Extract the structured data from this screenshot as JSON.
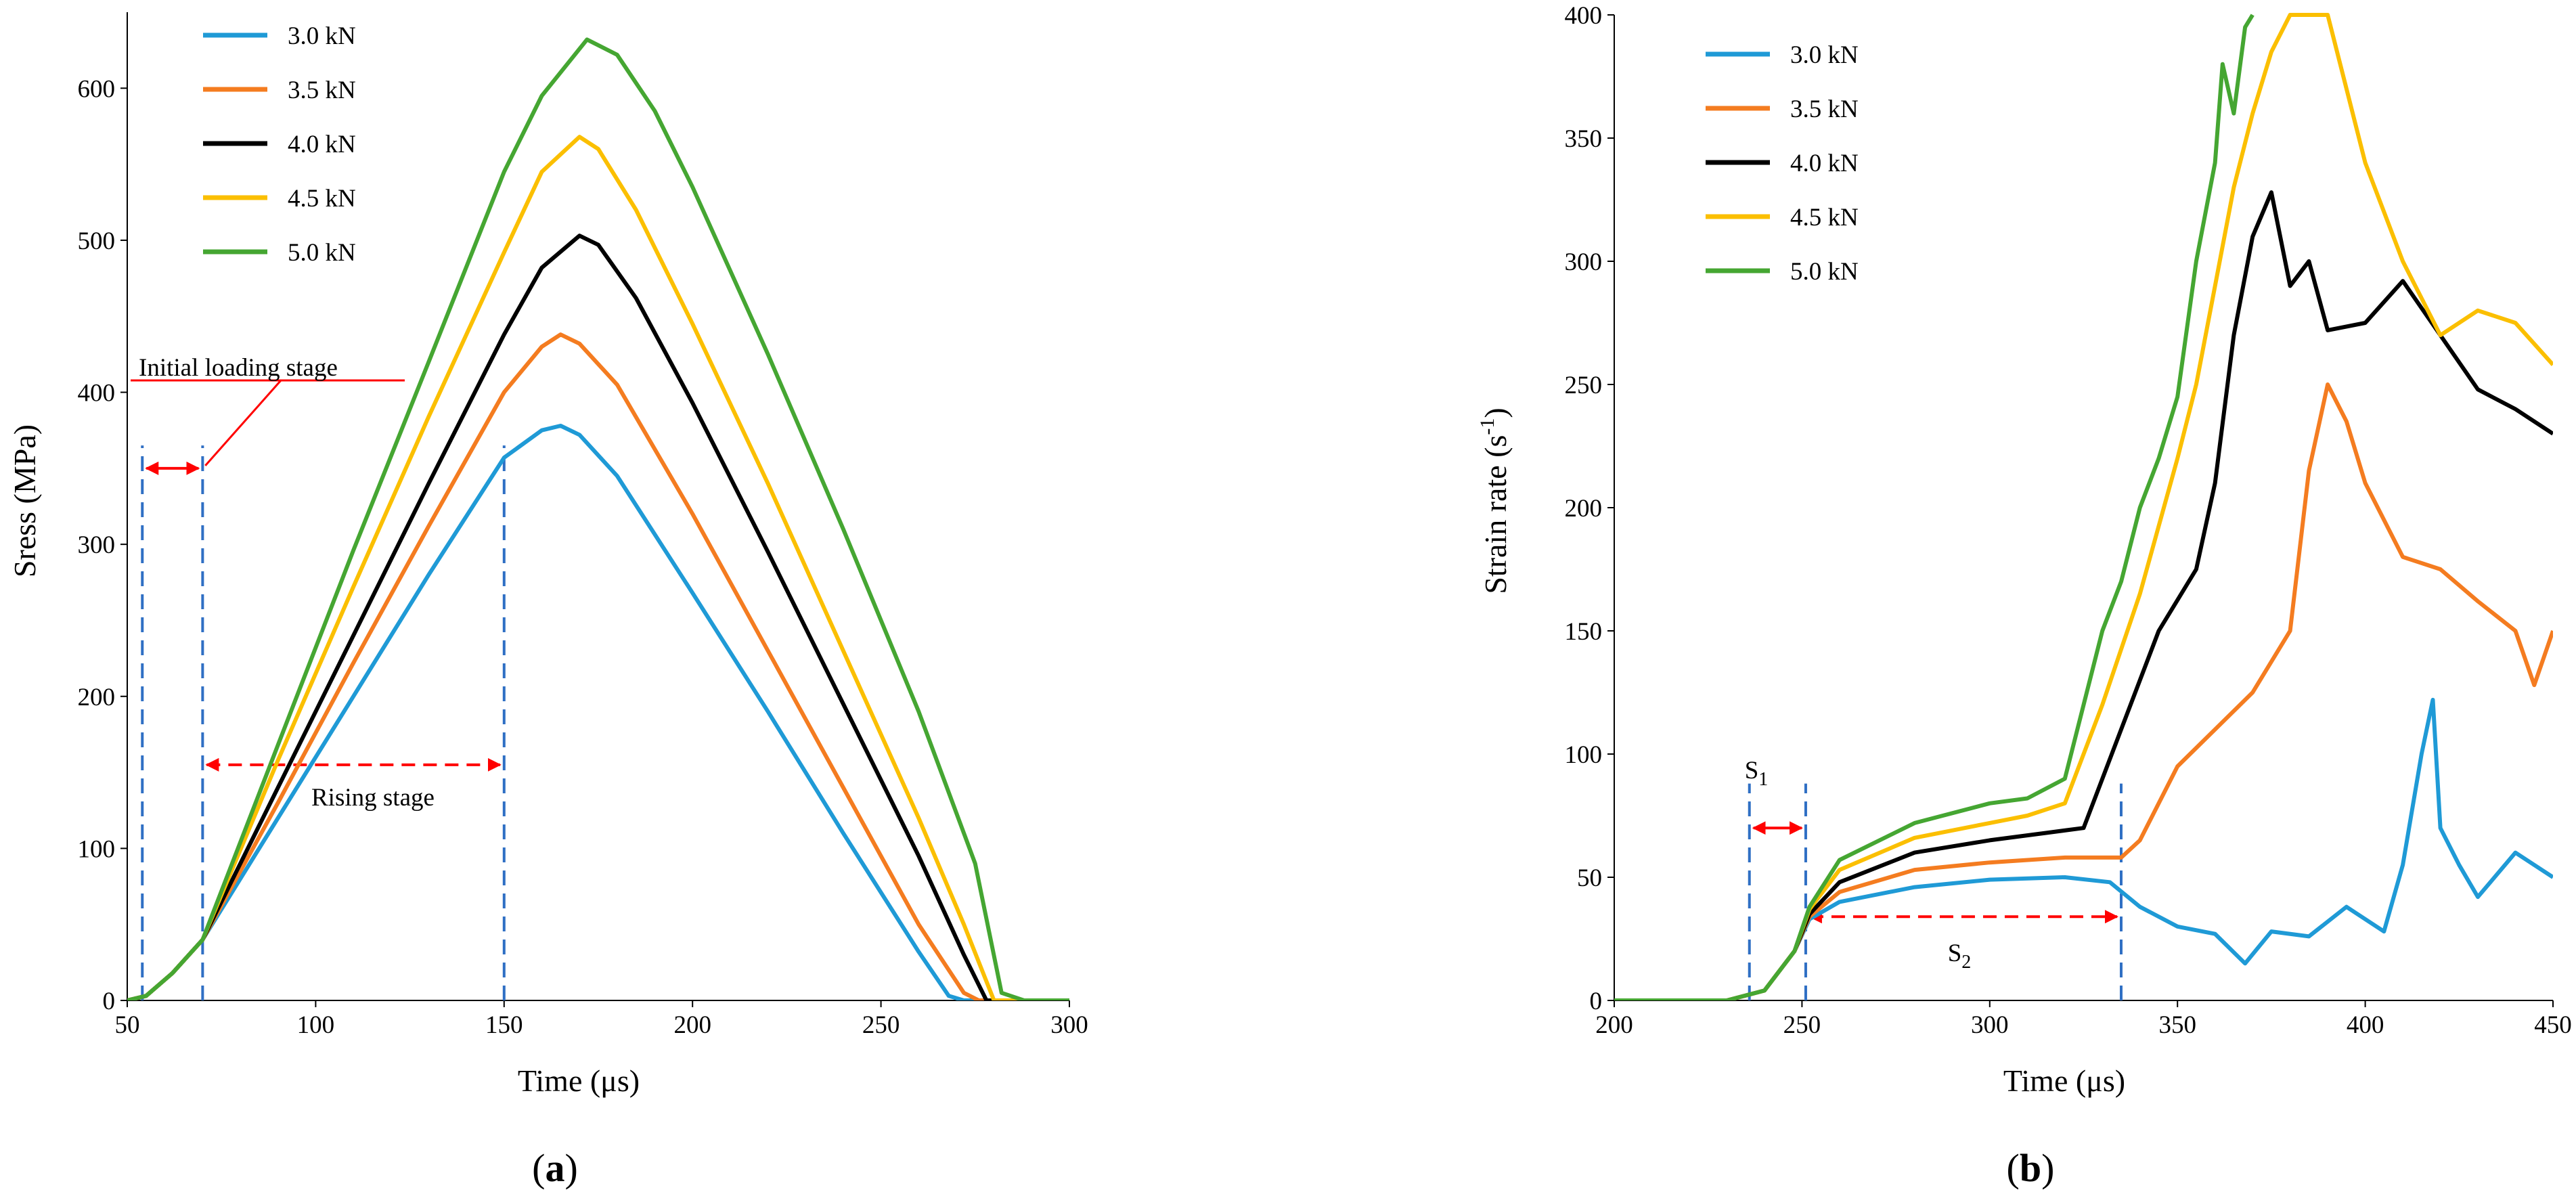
{
  "chart_data": [
    {
      "type": "line",
      "panel_label": "a",
      "xlabel": "Time (μs)",
      "ylabel": "Sress (MPa)",
      "xlim": [
        50,
        300
      ],
      "ylim": [
        0,
        650
      ],
      "xticks": [
        50,
        100,
        150,
        200,
        250,
        300
      ],
      "yticks": [
        0,
        100,
        200,
        300,
        400,
        500,
        600
      ],
      "legend_position": "top-left",
      "series": [
        {
          "name": "3.0 kN",
          "color": "#1f9ad6",
          "x": [
            50,
            55,
            62,
            70,
            90,
            110,
            130,
            150,
            160,
            165,
            170,
            180,
            200,
            220,
            240,
            260,
            268,
            272,
            280,
            300
          ],
          "y": [
            0,
            3,
            18,
            40,
            120,
            200,
            280,
            357,
            375,
            378,
            372,
            345,
            268,
            190,
            110,
            32,
            3,
            0,
            0,
            0
          ]
        },
        {
          "name": "3.5 kN",
          "color": "#f47c20",
          "x": [
            50,
            55,
            62,
            70,
            90,
            110,
            130,
            150,
            160,
            165,
            170,
            180,
            200,
            220,
            240,
            260,
            272,
            276,
            285,
            300
          ],
          "y": [
            0,
            3,
            18,
            40,
            130,
            222,
            312,
            400,
            430,
            438,
            432,
            405,
            320,
            230,
            140,
            50,
            5,
            0,
            0,
            0
          ]
        },
        {
          "name": "4.0 kN",
          "color": "#000000",
          "x": [
            50,
            55,
            62,
            70,
            90,
            110,
            130,
            150,
            160,
            170,
            175,
            185,
            200,
            220,
            240,
            260,
            272,
            278,
            285,
            300
          ],
          "y": [
            0,
            3,
            18,
            40,
            140,
            240,
            340,
            438,
            482,
            503,
            497,
            462,
            393,
            295,
            195,
            95,
            30,
            0,
            0,
            0
          ]
        },
        {
          "name": "4.5 kN",
          "color": "#fbbf00",
          "x": [
            50,
            55,
            62,
            70,
            90,
            110,
            130,
            150,
            160,
            170,
            175,
            185,
            200,
            220,
            240,
            260,
            272,
            280,
            285,
            300
          ],
          "y": [
            0,
            3,
            18,
            40,
            158,
            272,
            384,
            492,
            545,
            568,
            560,
            520,
            445,
            340,
            230,
            120,
            50,
            0,
            0,
            0
          ]
        },
        {
          "name": "5.0 kN",
          "color": "#45a632",
          "x": [
            50,
            55,
            62,
            70,
            90,
            110,
            130,
            150,
            160,
            172,
            180,
            190,
            200,
            220,
            240,
            260,
            275,
            282,
            288,
            300
          ],
          "y": [
            0,
            3,
            18,
            40,
            168,
            296,
            420,
            545,
            595,
            632,
            622,
            585,
            535,
            425,
            310,
            190,
            90,
            5,
            0,
            0
          ]
        }
      ],
      "annotations": [
        {
          "text": "Initial loading stage",
          "from": 54,
          "to": 70,
          "arrow_y": 350
        },
        {
          "text": "Rising stage",
          "from": 70,
          "to": 150,
          "arrow_y": 155
        },
        {
          "type": "dashed-vline",
          "x": 54
        },
        {
          "type": "dashed-vline",
          "x": 70
        },
        {
          "type": "dashed-vline",
          "x": 150
        }
      ]
    },
    {
      "type": "line",
      "panel_label": "b",
      "xlabel": "Time (μs)",
      "ylabel_main": "Strain rate (s",
      "ylabel_sup": "-1",
      "ylabel_end": ")",
      "xlim": [
        200,
        450
      ],
      "ylim": [
        0,
        400
      ],
      "xticks": [
        200,
        250,
        300,
        350,
        400,
        450
      ],
      "yticks": [
        0,
        50,
        100,
        150,
        200,
        250,
        300,
        350,
        400
      ],
      "legend_position": "top-left",
      "series": [
        {
          "name": "3.0 kN",
          "color": "#1f9ad6",
          "x": [
            200,
            230,
            240,
            248,
            252,
            260,
            280,
            300,
            320,
            332,
            340,
            350,
            360,
            368,
            375,
            385,
            395,
            405,
            410,
            415,
            418,
            420,
            425,
            430,
            440,
            450
          ],
          "y": [
            0,
            0,
            4,
            20,
            33,
            40,
            46,
            49,
            50,
            48,
            38,
            30,
            27,
            15,
            28,
            26,
            38,
            28,
            55,
            100,
            122,
            70,
            55,
            42,
            60,
            50
          ]
        },
        {
          "name": "3.5 kN",
          "color": "#f47c20",
          "x": [
            200,
            230,
            240,
            248,
            252,
            260,
            280,
            300,
            320,
            335,
            340,
            350,
            360,
            370,
            380,
            385,
            390,
            395,
            400,
            410,
            420,
            430,
            440,
            445,
            450
          ],
          "y": [
            0,
            0,
            4,
            20,
            34,
            44,
            53,
            56,
            58,
            58,
            65,
            95,
            110,
            125,
            150,
            215,
            250,
            235,
            210,
            180,
            175,
            162,
            150,
            128,
            150
          ]
        },
        {
          "name": "4.0 kN",
          "color": "#000000",
          "x": [
            200,
            230,
            240,
            248,
            252,
            260,
            280,
            300,
            315,
            325,
            335,
            345,
            355,
            360,
            365,
            370,
            375,
            380,
            385,
            390,
            400,
            410,
            420,
            430,
            440,
            450
          ],
          "y": [
            0,
            0,
            4,
            20,
            35,
            48,
            60,
            65,
            68,
            70,
            110,
            150,
            175,
            210,
            270,
            310,
            328,
            290,
            300,
            272,
            275,
            292,
            270,
            248,
            240,
            230
          ]
        },
        {
          "name": "4.5 kN",
          "color": "#fbbf00",
          "x": [
            200,
            230,
            240,
            248,
            252,
            260,
            280,
            300,
            310,
            320,
            330,
            340,
            350,
            355,
            360,
            365,
            370,
            375,
            380,
            390,
            395,
            400,
            410,
            420,
            430,
            440,
            450
          ],
          "y": [
            0,
            0,
            4,
            20,
            37,
            53,
            66,
            72,
            75,
            80,
            120,
            165,
            220,
            250,
            290,
            330,
            360,
            385,
            400,
            400,
            370,
            340,
            300,
            270,
            280,
            275,
            258
          ]
        },
        {
          "name": "5.0 kN",
          "color": "#45a632",
          "x": [
            200,
            230,
            240,
            248,
            252,
            260,
            280,
            300,
            310,
            320,
            325,
            330,
            335,
            340,
            345,
            350,
            355,
            360,
            362,
            365,
            368,
            370
          ],
          "y": [
            0,
            0,
            4,
            20,
            38,
            57,
            72,
            80,
            82,
            90,
            120,
            150,
            170,
            200,
            220,
            245,
            300,
            340,
            380,
            360,
            395,
            400
          ]
        }
      ],
      "annotations": [
        {
          "text_main": "S",
          "text_sub": "1",
          "from": 236,
          "to": 251,
          "arrow_y": 70
        },
        {
          "text_main": "S",
          "text_sub": "2",
          "from": 251,
          "to": 335,
          "arrow_y": 34
        },
        {
          "type": "dashed-vline",
          "x": 236
        },
        {
          "type": "dashed-vline",
          "x": 251
        },
        {
          "type": "dashed-vline",
          "x": 335
        }
      ]
    }
  ]
}
